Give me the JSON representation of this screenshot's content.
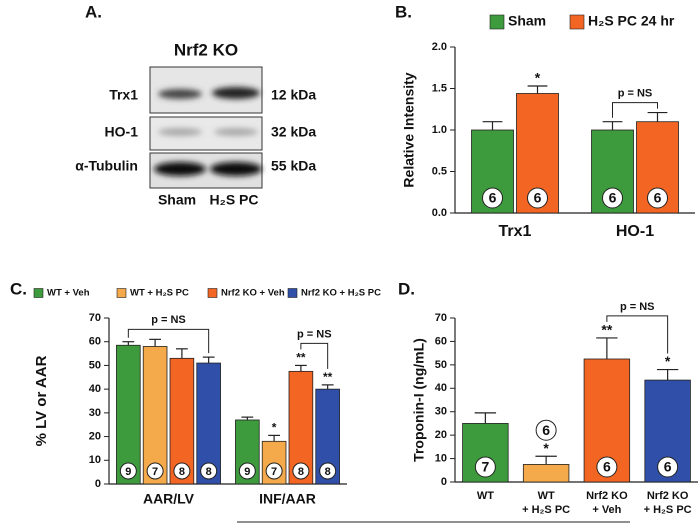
{
  "panel_a": {
    "label": "A.",
    "title": "Nrf2 KO",
    "rows": [
      {
        "name": "Trx1",
        "size": "12 kDa"
      },
      {
        "name": "HO-1",
        "size": "32 kDa"
      },
      {
        "name": "α-Tubulin",
        "size": "55 kDa"
      }
    ],
    "lanes": [
      "Sham",
      "H₂S PC"
    ]
  },
  "chart_data": [
    {
      "type": "bar",
      "panel_label": "B.",
      "ylabel": "Relative Intensity",
      "categories": [
        "Trx1",
        "HO-1"
      ],
      "series": [
        {
          "name": "Sham",
          "color": "#3d9b3d",
          "values": [
            1.0,
            1.0
          ],
          "errors": [
            0.1,
            0.1
          ],
          "n": [
            6,
            6
          ],
          "stars": [
            null,
            null
          ]
        },
        {
          "name": "H₂S PC 24 hr",
          "color": "#f26522",
          "values": [
            1.44,
            1.1
          ],
          "errors": [
            0.09,
            0.11
          ],
          "n": [
            6,
            6
          ],
          "stars": [
            "*",
            null
          ]
        }
      ],
      "annotations": [
        "p = NS"
      ],
      "ylim": [
        0,
        2
      ],
      "yticks": [
        {
          "value": 0,
          "label": "0.0"
        },
        0.5,
        {
          "value": 1,
          "label": "1.0"
        },
        1.5,
        {
          "value": 2,
          "label": "2.0"
        }
      ]
    },
    {
      "type": "bar",
      "panel_label": "C.",
      "ylabel": "% LV or AAR",
      "categories": [
        "AAR/LV",
        "INF/AAR"
      ],
      "series": [
        {
          "name": "WT + Veh",
          "color": "#3d9b3d",
          "values": [
            58.5,
            27
          ],
          "errors": [
            1.5,
            1.2
          ],
          "n": [
            9,
            9
          ],
          "stars": [
            null,
            null
          ]
        },
        {
          "name": "WT + H₂S PC",
          "color": "#f4a94a",
          "values": [
            58,
            18
          ],
          "errors": [
            3,
            2.5
          ],
          "n": [
            7,
            7
          ],
          "stars": [
            null,
            "*"
          ]
        },
        {
          "name": "Nrf2 KO + Veh",
          "color": "#f26522",
          "values": [
            53,
            47.5
          ],
          "errors": [
            4,
            2.5
          ],
          "n": [
            8,
            8
          ],
          "stars": [
            null,
            "**"
          ]
        },
        {
          "name": "Nrf2 KO + H₂S PC",
          "color": "#2f4fa8",
          "values": [
            51,
            40
          ],
          "errors": [
            2.5,
            1.8
          ],
          "n": [
            8,
            8
          ],
          "stars": [
            null,
            "**"
          ]
        }
      ],
      "annotations": [
        "p = NS",
        "p = NS"
      ],
      "ylim": [
        0,
        70
      ],
      "yticks": [
        0,
        10,
        20,
        30,
        40,
        50,
        60,
        70
      ]
    },
    {
      "type": "bar",
      "panel_label": "D.",
      "ylabel": "Troponin-I (ng/mL)",
      "categories": [
        [
          "WT"
        ],
        [
          "WT",
          "+ H₂S PC"
        ],
        [
          "Nrf2 KO",
          "+ Veh"
        ],
        [
          "Nrf2 KO",
          "+ H₂S PC"
        ]
      ],
      "values": [
        25,
        7.5,
        52.5,
        43.5
      ],
      "errors": [
        4.5,
        3.5,
        9,
        4.5
      ],
      "colors": [
        "#3d9b3d",
        "#f4a94a",
        "#f26522",
        "#2f4fa8"
      ],
      "n": [
        7,
        6,
        6,
        6
      ],
      "stars": [
        null,
        "*",
        "**",
        "*"
      ],
      "annotations": [
        "p = NS"
      ],
      "ylim": [
        0,
        70
      ],
      "yticks": [
        0,
        10,
        20,
        30,
        40,
        50,
        60,
        70
      ]
    }
  ]
}
